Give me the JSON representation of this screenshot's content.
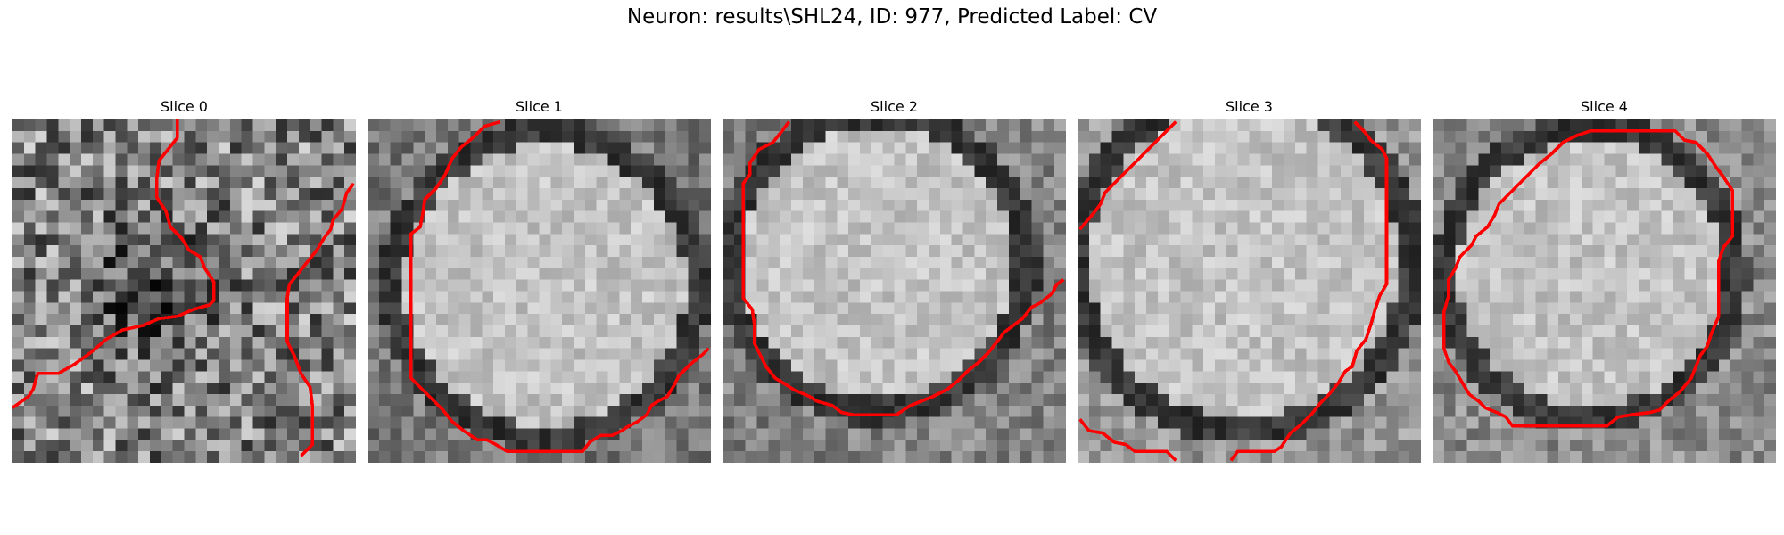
{
  "figure": {
    "title": "Neuron: results\\SHL24, ID: 977, Predicted Label: CV"
  },
  "contour_color": "#ff0000",
  "slices": [
    {
      "title": "Slice 0",
      "kind": "noise"
    },
    {
      "title": "Slice 1",
      "kind": "cell"
    },
    {
      "title": "Slice 2",
      "kind": "cell"
    },
    {
      "title": "Slice 3",
      "kind": "cell"
    },
    {
      "title": "Slice 4",
      "kind": "cell"
    }
  ]
}
